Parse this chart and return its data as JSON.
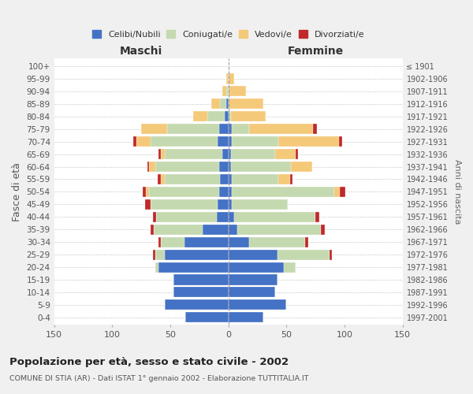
{
  "age_groups": [
    "0-4",
    "5-9",
    "10-14",
    "15-19",
    "20-24",
    "25-29",
    "30-34",
    "35-39",
    "40-44",
    "45-49",
    "50-54",
    "55-59",
    "60-64",
    "65-69",
    "70-74",
    "75-79",
    "80-84",
    "85-89",
    "90-94",
    "95-99",
    "100+"
  ],
  "birth_years": [
    "1997-2001",
    "1992-1996",
    "1987-1991",
    "1982-1986",
    "1977-1981",
    "1972-1976",
    "1967-1971",
    "1962-1966",
    "1957-1961",
    "1952-1956",
    "1947-1951",
    "1942-1946",
    "1937-1941",
    "1932-1936",
    "1927-1931",
    "1922-1926",
    "1917-1921",
    "1912-1916",
    "1907-1911",
    "1902-1906",
    "≤ 1901"
  ],
  "maschi": {
    "celibi": [
      37,
      55,
      47,
      47,
      60,
      55,
      38,
      22,
      10,
      9,
      8,
      7,
      8,
      5,
      9,
      8,
      3,
      2,
      0,
      0,
      0
    ],
    "coniugati": [
      0,
      0,
      0,
      0,
      3,
      8,
      20,
      42,
      52,
      58,
      60,
      48,
      55,
      50,
      58,
      45,
      15,
      5,
      2,
      0,
      0
    ],
    "vedovi": [
      0,
      0,
      0,
      0,
      0,
      0,
      0,
      0,
      0,
      0,
      3,
      3,
      5,
      3,
      12,
      22,
      12,
      8,
      3,
      2,
      0
    ],
    "divorziati": [
      0,
      0,
      0,
      0,
      0,
      2,
      2,
      3,
      3,
      5,
      3,
      3,
      2,
      2,
      3,
      0,
      0,
      0,
      0,
      0,
      0
    ]
  },
  "femmine": {
    "nubili": [
      30,
      50,
      40,
      42,
      48,
      42,
      18,
      8,
      5,
      3,
      3,
      3,
      2,
      2,
      3,
      3,
      0,
      0,
      0,
      0,
      0
    ],
    "coniugate": [
      0,
      0,
      0,
      0,
      10,
      45,
      48,
      72,
      70,
      48,
      88,
      40,
      52,
      38,
      40,
      15,
      2,
      0,
      0,
      0,
      0
    ],
    "vedove": [
      0,
      0,
      0,
      0,
      0,
      0,
      0,
      0,
      0,
      0,
      5,
      10,
      18,
      18,
      52,
      55,
      30,
      30,
      15,
      5,
      0
    ],
    "divorziate": [
      0,
      0,
      0,
      0,
      0,
      2,
      3,
      3,
      3,
      0,
      5,
      2,
      0,
      2,
      3,
      3,
      0,
      0,
      0,
      0,
      0
    ]
  },
  "colors": {
    "celibi": "#4472C4",
    "coniugati": "#C5D9B0",
    "vedovi": "#F5C97A",
    "divorziati": "#C0292A"
  },
  "xlim": 150,
  "title": "Popolazione per età, sesso e stato civile - 2002",
  "subtitle": "COMUNE DI STIA (AR) - Dati ISTAT 1° gennaio 2002 - Elaborazione TUTTITALIA.IT",
  "ylabel_left": "Fasce di età",
  "ylabel_right": "Anni di nascita",
  "xlabel_maschi": "Maschi",
  "xlabel_femmine": "Femmine",
  "bg_color": "#f0f0f0",
  "plot_bg": "#ffffff"
}
